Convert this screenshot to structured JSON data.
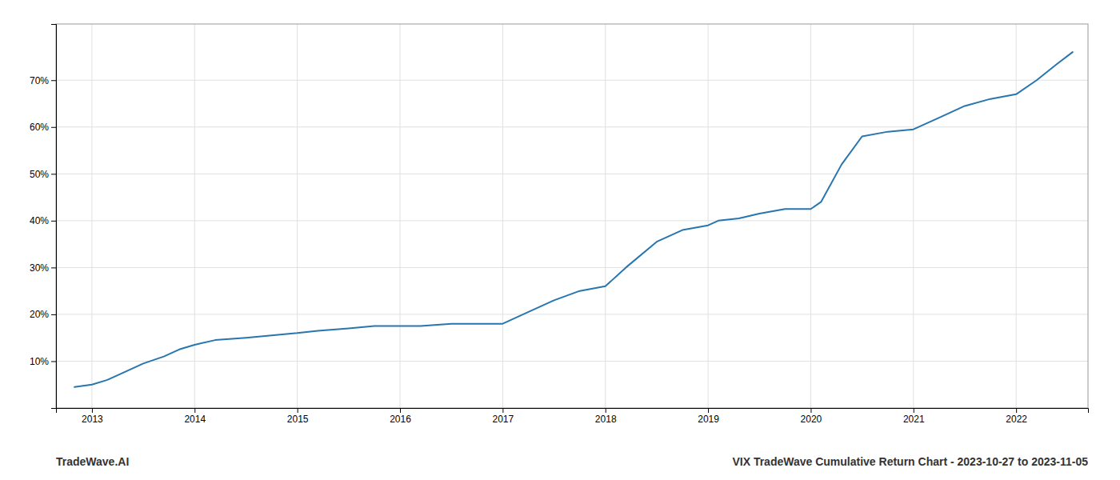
{
  "chart_data": {
    "type": "line",
    "title": "VIX TradeWave Cumulative Return Chart - 2023-10-27 to 2023-11-05",
    "annotations": [
      "TradeWave.AI"
    ],
    "x": [
      2012.83,
      2013.0,
      2013.15,
      2013.3,
      2013.5,
      2013.7,
      2013.85,
      2014.0,
      2014.2,
      2014.5,
      2014.75,
      2015.0,
      2015.2,
      2015.5,
      2015.75,
      2016.0,
      2016.2,
      2016.5,
      2016.75,
      2017.0,
      2017.2,
      2017.5,
      2017.75,
      2018.0,
      2018.2,
      2018.5,
      2018.75,
      2019.0,
      2019.1,
      2019.3,
      2019.5,
      2019.75,
      2020.0,
      2020.1,
      2020.3,
      2020.5,
      2020.75,
      2021.0,
      2021.25,
      2021.5,
      2021.75,
      2022.0,
      2022.2,
      2022.4,
      2022.55
    ],
    "values": [
      4.5,
      5.0,
      6.0,
      7.5,
      9.5,
      11.0,
      12.5,
      13.5,
      14.5,
      15.0,
      15.5,
      16.0,
      16.5,
      17.0,
      17.5,
      17.5,
      17.5,
      18.0,
      18.0,
      18.0,
      20.0,
      23.0,
      25.0,
      26.0,
      30.0,
      35.5,
      38.0,
      39.0,
      40.0,
      40.5,
      41.5,
      42.5,
      42.5,
      44.0,
      52.0,
      58.0,
      59.0,
      59.5,
      62.0,
      64.5,
      66.0,
      67.0,
      70.0,
      73.5,
      76.0
    ],
    "color": "#2776b0",
    "xlim": [
      2012.65,
      2022.7
    ],
    "ylim": [
      0,
      82
    ],
    "xticks": [
      2013,
      2014,
      2015,
      2016,
      2017,
      2018,
      2019,
      2020,
      2021,
      2022
    ],
    "yticks": [
      {
        "value": 10,
        "label": "10%"
      },
      {
        "value": 20,
        "label": "20%"
      },
      {
        "value": 30,
        "label": "30%"
      },
      {
        "value": 40,
        "label": "40%"
      },
      {
        "value": 50,
        "label": "50%"
      },
      {
        "value": 60,
        "label": "60%"
      },
      {
        "value": 70,
        "label": "70%"
      }
    ],
    "grid": true
  }
}
